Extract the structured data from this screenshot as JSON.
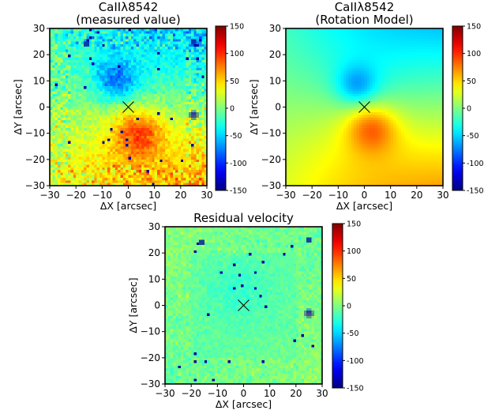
{
  "chart_data": [
    {
      "type": "heatmap",
      "title_lines": [
        "CaIIλ8542",
        "(measured value)"
      ],
      "xlabel": "ΔX [arcsec]",
      "ylabel": "ΔY [arcsec]",
      "xlim": [
        -30,
        30
      ],
      "ylim": [
        -30,
        30
      ],
      "xticks": [
        -30,
        -20,
        -10,
        0,
        10,
        20,
        30
      ],
      "yticks": [
        -30,
        -20,
        -10,
        0,
        10,
        20,
        30
      ],
      "colorbar": {
        "min": -150,
        "max": 150,
        "ticks": [
          150,
          100,
          50,
          0,
          -50,
          -100,
          -150
        ],
        "colormap": "jet"
      },
      "center_marker": {
        "x": 0,
        "y": 0,
        "symbol": "×"
      },
      "pattern": "measured",
      "features": {
        "blueshift_peak": {
          "x": -5,
          "y": 10,
          "value": -70
        },
        "redshift_peak": {
          "x": 4,
          "y": -10,
          "value": 90
        },
        "point_sources": [
          {
            "x": -16,
            "y": 24
          },
          {
            "x": 25,
            "y": 25
          },
          {
            "x": 25,
            "y": -3
          }
        ]
      }
    },
    {
      "type": "heatmap",
      "title_lines": [
        "CaIIλ8542",
        "(Rotation Model)"
      ],
      "xlabel": "ΔX [arcsec]",
      "ylabel": "ΔY [arcsec]",
      "xlim": [
        -30,
        30
      ],
      "ylim": [
        -30,
        30
      ],
      "xticks": [
        -30,
        -20,
        -10,
        0,
        10,
        20,
        30
      ],
      "yticks": [
        -30,
        -20,
        -10,
        0,
        10,
        20,
        30
      ],
      "colorbar": {
        "min": -150,
        "max": 150,
        "ticks": [
          150,
          100,
          50,
          0,
          -50,
          -100,
          -150
        ],
        "colormap": "jet"
      },
      "center_marker": {
        "x": 0,
        "y": 0,
        "symbol": "×"
      },
      "pattern": "model",
      "features": {
        "blueshift_peak": {
          "x": -3,
          "y": 8,
          "value": -65
        },
        "redshift_peak": {
          "x": 3,
          "y": -8,
          "value": 95
        }
      }
    },
    {
      "type": "heatmap",
      "title_lines": [
        "Residual velocity"
      ],
      "xlabel": "ΔX [arcsec]",
      "ylabel": "ΔY [arcsec]",
      "xlim": [
        -30,
        30
      ],
      "ylim": [
        -30,
        30
      ],
      "xticks": [
        -30,
        -20,
        -10,
        0,
        10,
        20,
        30
      ],
      "yticks": [
        -30,
        -20,
        -10,
        0,
        10,
        20,
        30
      ],
      "colorbar": {
        "min": -150,
        "max": 150,
        "ticks": [
          150,
          100,
          50,
          0,
          -50,
          -100,
          -150
        ],
        "colormap": "jet"
      },
      "center_marker": {
        "x": 0,
        "y": 0,
        "symbol": "×"
      },
      "pattern": "residual",
      "features": {
        "point_sources": [
          {
            "x": -16,
            "y": 24
          },
          {
            "x": 25,
            "y": 25
          },
          {
            "x": 25,
            "y": -3
          }
        ]
      }
    }
  ]
}
